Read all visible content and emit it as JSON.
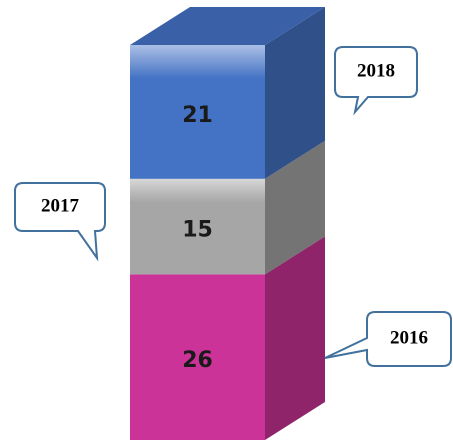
{
  "chart_data": {
    "type": "bar",
    "stacked": true,
    "series": [
      {
        "name": "2016",
        "color": "#cc3399",
        "values": [
          26
        ]
      },
      {
        "name": "2017",
        "color": "#a6a6a6",
        "values": [
          15
        ]
      },
      {
        "name": "2018",
        "color": "#4472c4",
        "values": [
          21
        ]
      }
    ]
  }
}
